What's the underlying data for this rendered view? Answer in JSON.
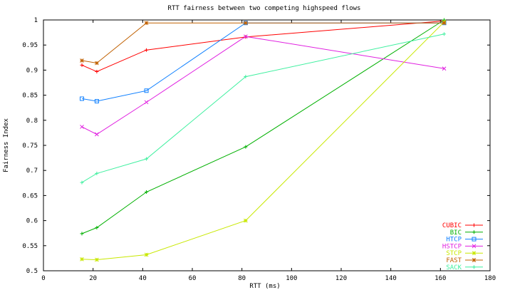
{
  "chart_data": {
    "type": "line",
    "title": "RTT fairness between two competing highspeed flows",
    "xlabel": "RTT (ms)",
    "ylabel": "Fairness Index",
    "xlim": [
      0,
      180
    ],
    "ylim": [
      0.5,
      1.0
    ],
    "xticks": [
      0,
      20,
      40,
      60,
      80,
      100,
      120,
      140,
      160,
      180
    ],
    "yticks": [
      0.5,
      0.55,
      0.6,
      0.65,
      0.7,
      0.75,
      0.8,
      0.85,
      0.9,
      0.95,
      1.0
    ],
    "ytick_labels": [
      "0.5",
      "0.55",
      "0.6",
      "0.65",
      "0.7",
      "0.75",
      "0.8",
      "0.85",
      "0.9",
      "0.95",
      "1"
    ],
    "grid": false,
    "legend_position": "bottom-right",
    "series": [
      {
        "name": "CUBIC",
        "color": "#ff0000",
        "marker": "plus",
        "x": [
          15.5,
          21.5,
          41.5,
          81.5,
          161.5
        ],
        "y": [
          0.91,
          0.897,
          0.94,
          0.966,
          0.998
        ]
      },
      {
        "name": "BIC",
        "color": "#00b000",
        "marker": "plus",
        "x": [
          15.5,
          21.5,
          41.5,
          81.5,
          161.5
        ],
        "y": [
          0.574,
          0.586,
          0.657,
          0.747,
          1.0
        ]
      },
      {
        "name": "HTCP",
        "color": "#1080ff",
        "marker": "square",
        "x": [
          15.5,
          21.5,
          41.5,
          81.5,
          161.5
        ],
        "y": [
          0.843,
          0.838,
          0.859,
          0.994,
          0.994
        ]
      },
      {
        "name": "HSTCP",
        "color": "#e020e0",
        "marker": "cross",
        "x": [
          15.5,
          21.5,
          41.5,
          81.5,
          161.5
        ],
        "y": [
          0.787,
          0.772,
          0.836,
          0.967,
          0.903
        ]
      },
      {
        "name": "STCP",
        "color": "#c8e800",
        "marker": "star",
        "x": [
          15.5,
          21.5,
          41.5,
          81.5,
          161.5
        ],
        "y": [
          0.523,
          0.522,
          0.532,
          0.6,
          0.996
        ]
      },
      {
        "name": "FAST",
        "color": "#c06000",
        "marker": "star",
        "x": [
          15.5,
          21.5,
          41.5,
          81.5,
          161.5
        ],
        "y": [
          0.919,
          0.914,
          0.994,
          0.994,
          0.994
        ]
      },
      {
        "name": "SACK",
        "color": "#40f0a0",
        "marker": "plus",
        "x": [
          15.5,
          21.5,
          41.5,
          81.5,
          161.5
        ],
        "y": [
          0.676,
          0.694,
          0.723,
          0.887,
          0.972
        ]
      }
    ]
  }
}
